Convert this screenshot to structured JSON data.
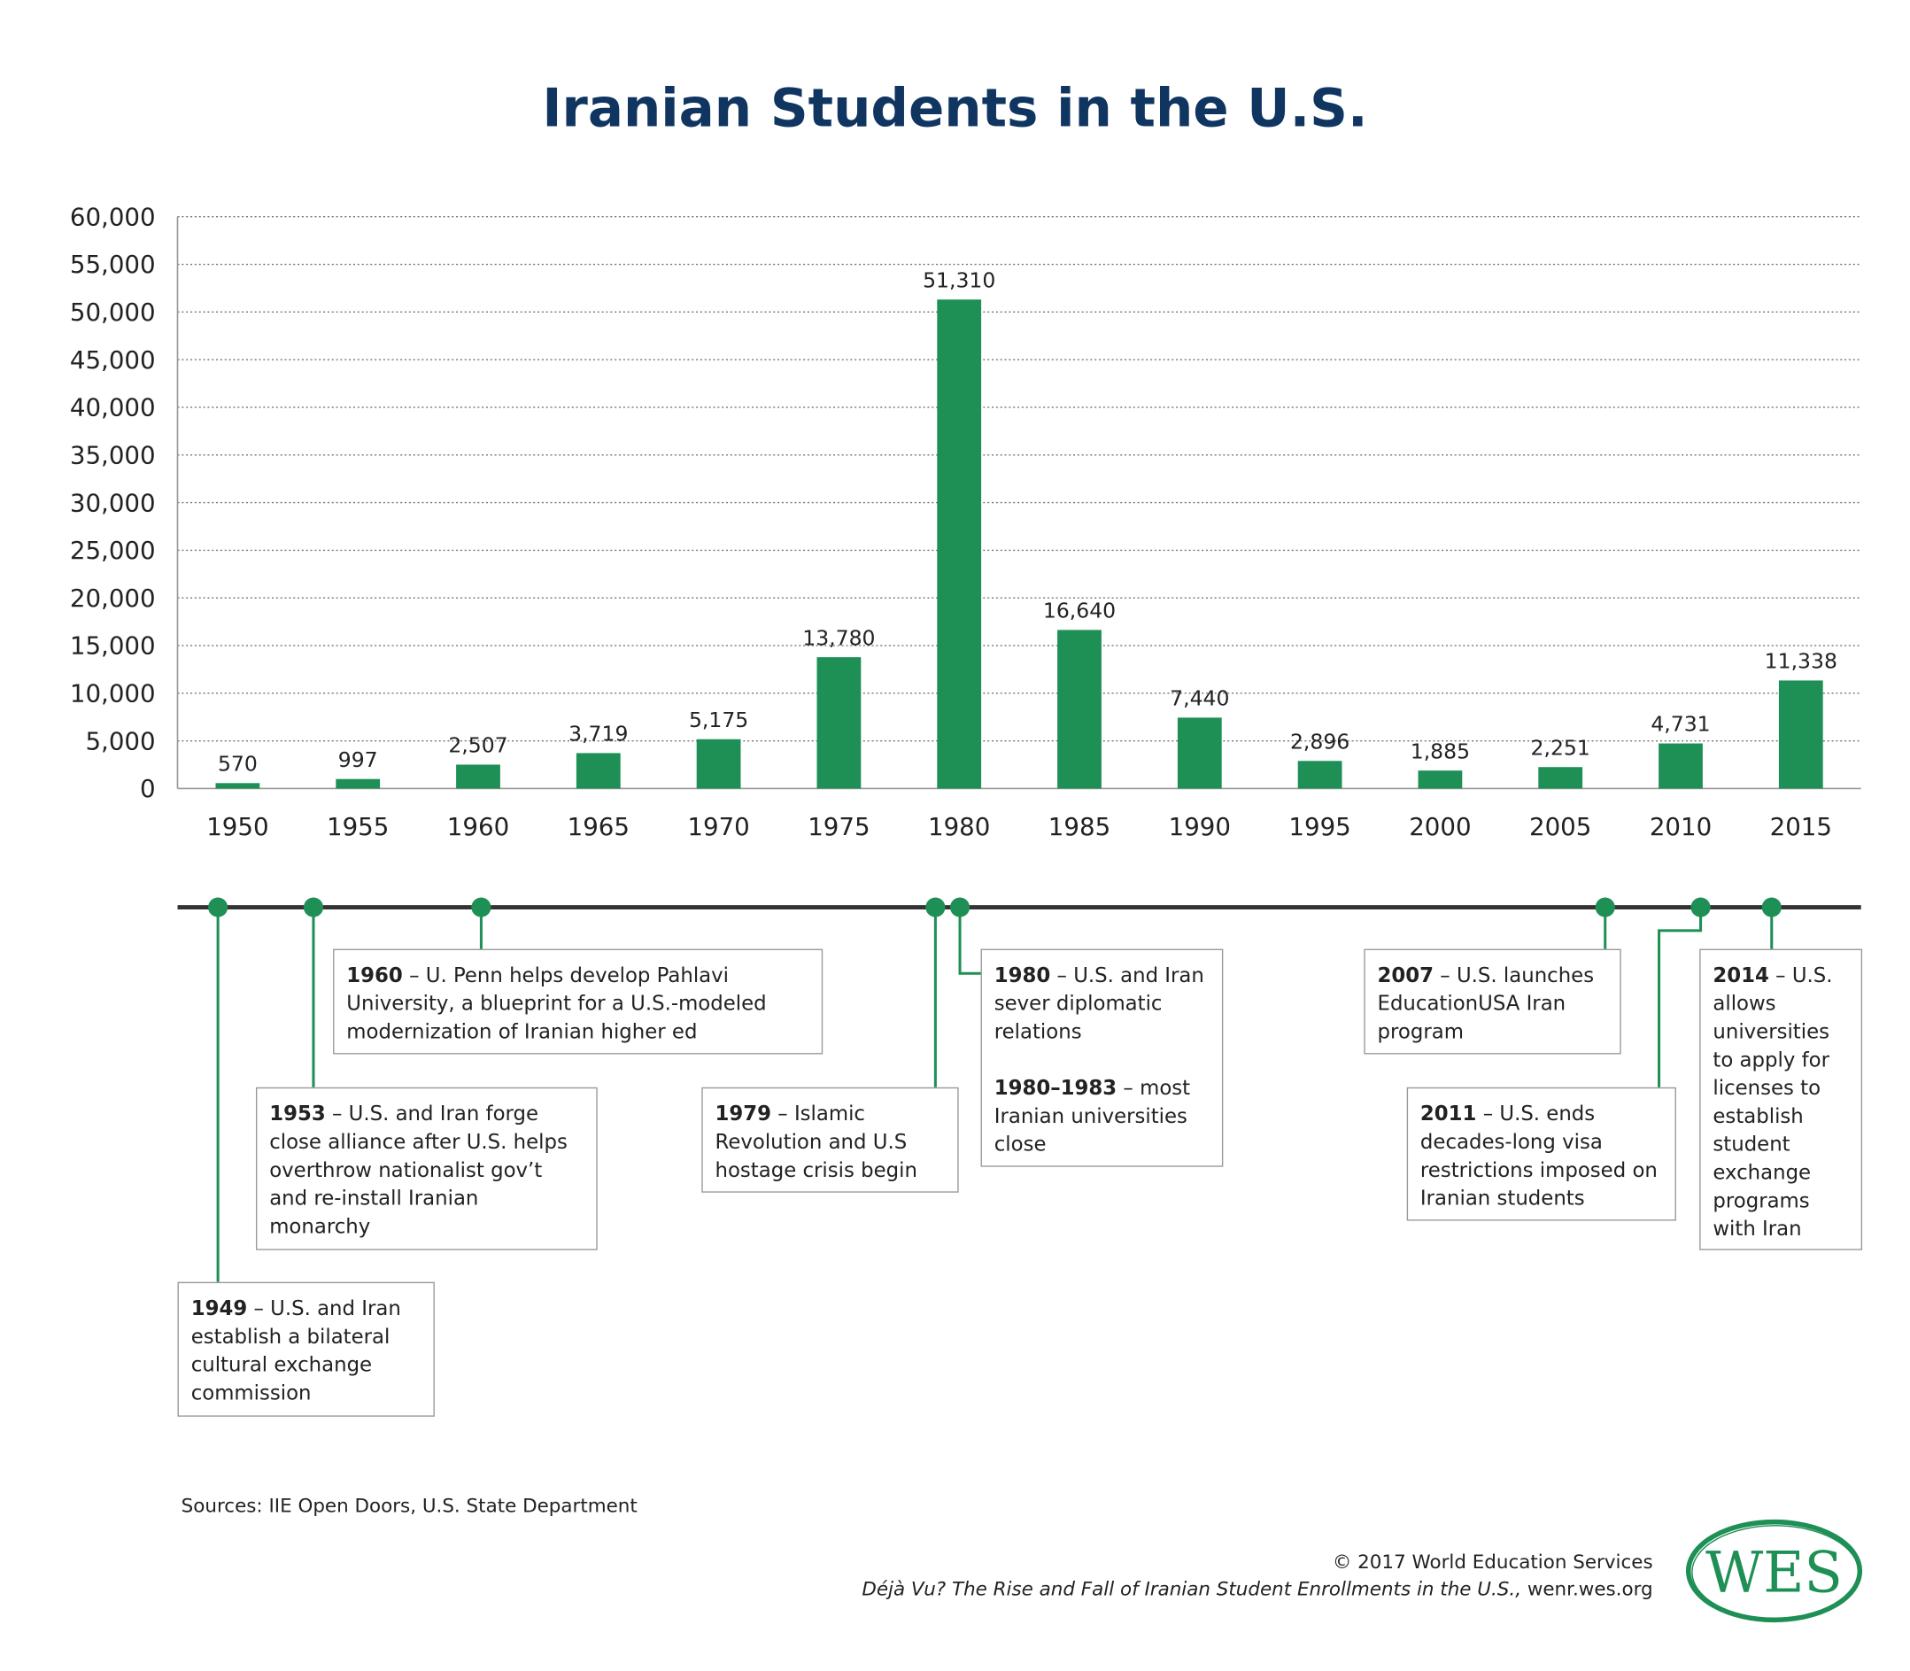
{
  "chart_data": {
    "type": "bar",
    "title": "Iranian Students in the U.S.",
    "categories": [
      "1950",
      "1955",
      "1960",
      "1965",
      "1970",
      "1975",
      "1980",
      "1985",
      "1990",
      "1995",
      "2000",
      "2005",
      "2010",
      "2015"
    ],
    "values": [
      570,
      997,
      2507,
      3719,
      5175,
      13780,
      51310,
      16640,
      7440,
      2896,
      1885,
      2251,
      4731,
      11338
    ],
    "data_labels": [
      "570",
      "997",
      "2,507",
      "3,719",
      "5,175",
      "13,780",
      "51,310",
      "16,640",
      "7,440",
      "2,896",
      "1,885",
      "2,251",
      "4,731",
      "11,338"
    ],
    "ylim": [
      0,
      60000
    ],
    "yticks": [
      "0",
      "5,000",
      "10,000",
      "15,000",
      "20,000",
      "25,000",
      "30,000",
      "35,000",
      "40,000",
      "45,000",
      "50,000",
      "55,000",
      "60,000"
    ],
    "grid": true,
    "bar_color": "#1e8f55"
  },
  "timeline": {
    "line_color": "#333333",
    "dot_color": "#1e8f55",
    "events": [
      {
        "year": "1949",
        "text": "U.S. and Iran establish a  bilateral cultural exchange commission"
      },
      {
        "year": "1953",
        "text": "U.S. and Iran forge close alliance after U.S. helps overthrow nationalist gov’t and re-install Iranian monarchy"
      },
      {
        "year": "1960",
        "text": "U. Penn helps develop Pahlavi University, a blueprint for a U.S.-modeled modernization of Iranian higher ed"
      },
      {
        "year": "1979",
        "text": "Islamic Revolution and U.S hostage crisis begin"
      },
      {
        "year": "1980",
        "text": "U.S. and Iran sever diplomatic relations",
        "year2": "1980–1983",
        "text2": "most Iranian universities close"
      },
      {
        "year": "2007",
        "text": "U.S. launches EducationUSA Iran program"
      },
      {
        "year": "2011",
        "text": "U.S. ends decades-long visa restrictions imposed on Iranian students"
      },
      {
        "year": "2014",
        "text": "U.S. allows universities to apply for licenses to establish student exchange programs with Iran"
      }
    ]
  },
  "footer": {
    "sources": "Sources: IIE Open Doors, U.S. State Department",
    "copyright": "© 2017 World Education Services",
    "publication": "Déjà Vu? The Rise and Fall of Iranian Student Enrollments in the U.S.,",
    "url": " wenr.wes.org",
    "logo_text": "WES",
    "logo_color": "#1e8f55"
  },
  "dash": " – "
}
